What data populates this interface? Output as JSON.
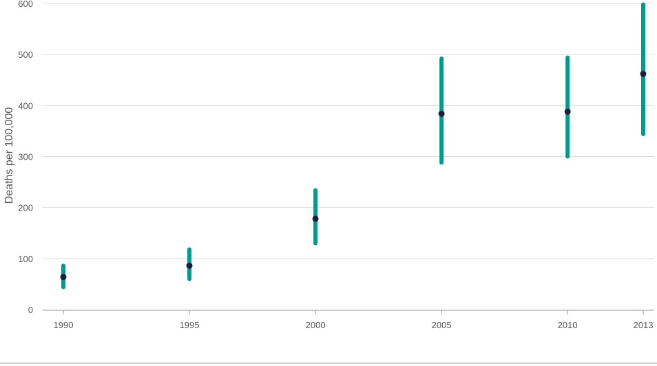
{
  "chart_data": {
    "type": "scatter",
    "title": "",
    "xlabel": "",
    "ylabel": "Deaths per 100,000",
    "x": [
      1990,
      1995,
      2000,
      2005,
      2010,
      2013
    ],
    "series": [
      {
        "values": [
          64,
          86,
          178,
          384,
          388,
          462
        ],
        "lower": [
          44,
          60,
          130,
          288,
          300,
          344
        ],
        "upper": [
          86,
          118,
          234,
          492,
          494,
          598
        ]
      }
    ],
    "xlim": [
      1990,
      2013
    ],
    "ylim": [
      0,
      600
    ],
    "yticks": [
      0,
      100,
      200,
      300,
      400,
      500,
      600
    ],
    "xticks": [
      1990,
      1995,
      2000,
      2005,
      2010,
      2013
    ],
    "grid": "horizontal",
    "colors": {
      "interval": "#009a8e",
      "point": "#1b1f3f",
      "grid": "#dddddd",
      "axis": "#999999"
    }
  }
}
